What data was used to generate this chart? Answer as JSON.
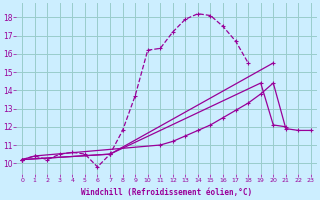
{
  "line_color": "#990099",
  "bg_color": "#cceeff",
  "grid_color": "#99cccc",
  "xlabel": "Windchill (Refroidissement éolien,°C)",
  "xlim": [
    -0.5,
    23.5
  ],
  "ylim": [
    9.4,
    18.8
  ],
  "yticks": [
    10,
    11,
    12,
    13,
    14,
    15,
    16,
    17,
    18
  ],
  "xticks": [
    0,
    1,
    2,
    3,
    4,
    5,
    6,
    7,
    8,
    9,
    10,
    11,
    12,
    13,
    14,
    15,
    16,
    17,
    18,
    19,
    20,
    21,
    22,
    23
  ],
  "series": [
    {
      "x": [
        0,
        1,
        2,
        3,
        4,
        5,
        6,
        7,
        8,
        9,
        10,
        11,
        12,
        13,
        14,
        15,
        16,
        17,
        18
      ],
      "y": [
        10.2,
        10.4,
        10.2,
        10.5,
        10.6,
        10.5,
        9.8,
        10.5,
        11.8,
        13.7,
        16.2,
        16.3,
        17.2,
        17.9,
        18.2,
        18.1,
        17.5,
        16.7,
        15.5
      ],
      "style": "dashed"
    },
    {
      "x": [
        0,
        7,
        20
      ],
      "y": [
        10.2,
        10.5,
        15.5
      ],
      "style": "solid"
    },
    {
      "x": [
        0,
        7,
        19,
        20,
        21
      ],
      "y": [
        10.2,
        10.5,
        14.4,
        12.1,
        12.0
      ],
      "style": "solid"
    },
    {
      "x": [
        0,
        1,
        11,
        12,
        13,
        14,
        15,
        16,
        17,
        18,
        19,
        20,
        21,
        22,
        23
      ],
      "y": [
        10.2,
        10.4,
        11.0,
        11.2,
        11.5,
        11.8,
        12.1,
        12.5,
        12.9,
        13.3,
        13.8,
        14.4,
        11.9,
        11.8,
        11.8
      ],
      "style": "solid"
    }
  ]
}
